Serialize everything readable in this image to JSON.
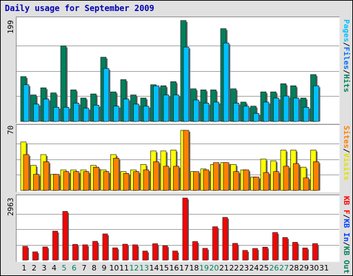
{
  "title": "Daily usage for September 2009",
  "colors": {
    "pages": "#00c0ff",
    "files": "#008040",
    "hits": "#00805c",
    "visits": "#ffff00",
    "sites": "#ff8000",
    "kb_out": "#00805c",
    "kb_in": "#0040ff",
    "kb_f": "#ff0000",
    "weekday_label": "#000000",
    "weekend_label": "#00805c"
  },
  "chart_data": [
    {
      "type": "bar",
      "name": "hits-files-pages",
      "ymax_label": "199",
      "ylim": [
        0,
        199
      ],
      "right_label": [
        "Pages",
        "Files",
        "Hits"
      ],
      "categories": [
        "1",
        "2",
        "3",
        "4",
        "5",
        "6",
        "7",
        "8",
        "9",
        "10",
        "11",
        "12",
        "13",
        "14",
        "15",
        "16",
        "17",
        "18",
        "19",
        "20",
        "21",
        "22",
        "23",
        "24",
        "25",
        "26",
        "27",
        "28",
        "29",
        "30",
        "31"
      ],
      "series": [
        {
          "name": "Hits",
          "values": [
            88,
            52,
            66,
            56,
            148,
            62,
            46,
            54,
            126,
            58,
            82,
            52,
            46,
            72,
            70,
            78,
            198,
            64,
            62,
            62,
            182,
            64,
            38,
            30,
            58,
            58,
            74,
            70,
            46,
            92,
            0
          ]
        },
        {
          "name": "Pages",
          "values": [
            72,
            34,
            44,
            28,
            28,
            36,
            26,
            32,
            104,
            30,
            44,
            34,
            30,
            70,
            52,
            52,
            146,
            42,
            36,
            38,
            154,
            36,
            30,
            16,
            38,
            46,
            50,
            46,
            28,
            70,
            0
          ]
        }
      ]
    },
    {
      "type": "bar",
      "name": "visits-sites",
      "ymax_label": "70",
      "ylim": [
        0,
        70
      ],
      "right_label": [
        "Sites",
        "Visits"
      ],
      "categories": [
        "1",
        "2",
        "3",
        "4",
        "5",
        "6",
        "7",
        "8",
        "9",
        "10",
        "11",
        "12",
        "13",
        "14",
        "15",
        "16",
        "17",
        "18",
        "19",
        "20",
        "21",
        "22",
        "23",
        "24",
        "25",
        "26",
        "27",
        "28",
        "29",
        "30",
        "31"
      ],
      "series": [
        {
          "name": "Visits",
          "values": [
            54,
            28,
            40,
            18,
            23,
            23,
            23,
            28,
            23,
            40,
            21,
            23,
            29,
            44,
            44,
            45,
            67,
            21,
            24,
            29,
            31,
            29,
            23,
            15,
            35,
            33,
            45,
            45,
            26,
            45,
            0
          ]
        },
        {
          "name": "Sites",
          "values": [
            40,
            18,
            32,
            18,
            21,
            21,
            21,
            26,
            21,
            36,
            19,
            21,
            23,
            32,
            27,
            27,
            67,
            21,
            23,
            31,
            31,
            21,
            23,
            15,
            20,
            21,
            27,
            30,
            14,
            32,
            0
          ]
        }
      ]
    },
    {
      "type": "bar",
      "name": "kbytes",
      "ymax_label": "2963",
      "ylim": [
        0,
        2963
      ],
      "right_label": [
        "KB F",
        "KB In",
        "KB Out"
      ],
      "categories": [
        "1",
        "2",
        "3",
        "4",
        "5",
        "6",
        "7",
        "8",
        "9",
        "10",
        "11",
        "12",
        "13",
        "14",
        "15",
        "16",
        "17",
        "18",
        "19",
        "20",
        "21",
        "22",
        "23",
        "24",
        "25",
        "26",
        "27",
        "28",
        "29",
        "30",
        "31"
      ],
      "series": [
        {
          "name": "KB F",
          "values": [
            660,
            396,
            630,
            1384,
            2323,
            752,
            730,
            897,
            1252,
            587,
            760,
            730,
            433,
            786,
            686,
            435,
            2963,
            890,
            562,
            1594,
            2040,
            800,
            464,
            558,
            620,
            1320,
            1080,
            852,
            580,
            790,
            0
          ]
        }
      ]
    }
  ],
  "days": [
    {
      "label": "1",
      "weekend": false
    },
    {
      "label": "2",
      "weekend": false
    },
    {
      "label": "3",
      "weekend": false
    },
    {
      "label": "4",
      "weekend": false
    },
    {
      "label": "5",
      "weekend": true
    },
    {
      "label": "6",
      "weekend": true
    },
    {
      "label": "7",
      "weekend": false
    },
    {
      "label": "8",
      "weekend": false
    },
    {
      "label": "9",
      "weekend": false
    },
    {
      "label": "10",
      "weekend": false
    },
    {
      "label": "11",
      "weekend": false
    },
    {
      "label": "12",
      "weekend": true
    },
    {
      "label": "13",
      "weekend": true
    },
    {
      "label": "14",
      "weekend": false
    },
    {
      "label": "15",
      "weekend": false
    },
    {
      "label": "16",
      "weekend": false
    },
    {
      "label": "17",
      "weekend": false
    },
    {
      "label": "18",
      "weekend": false
    },
    {
      "label": "19",
      "weekend": true
    },
    {
      "label": "20",
      "weekend": true
    },
    {
      "label": "21",
      "weekend": false
    },
    {
      "label": "22",
      "weekend": false
    },
    {
      "label": "23",
      "weekend": false
    },
    {
      "label": "24",
      "weekend": false
    },
    {
      "label": "25",
      "weekend": false
    },
    {
      "label": "26",
      "weekend": true
    },
    {
      "label": "27",
      "weekend": true
    },
    {
      "label": "28",
      "weekend": false
    },
    {
      "label": "29",
      "weekend": false
    },
    {
      "label": "30",
      "weekend": false
    },
    {
      "label": "31",
      "weekend": false
    }
  ]
}
